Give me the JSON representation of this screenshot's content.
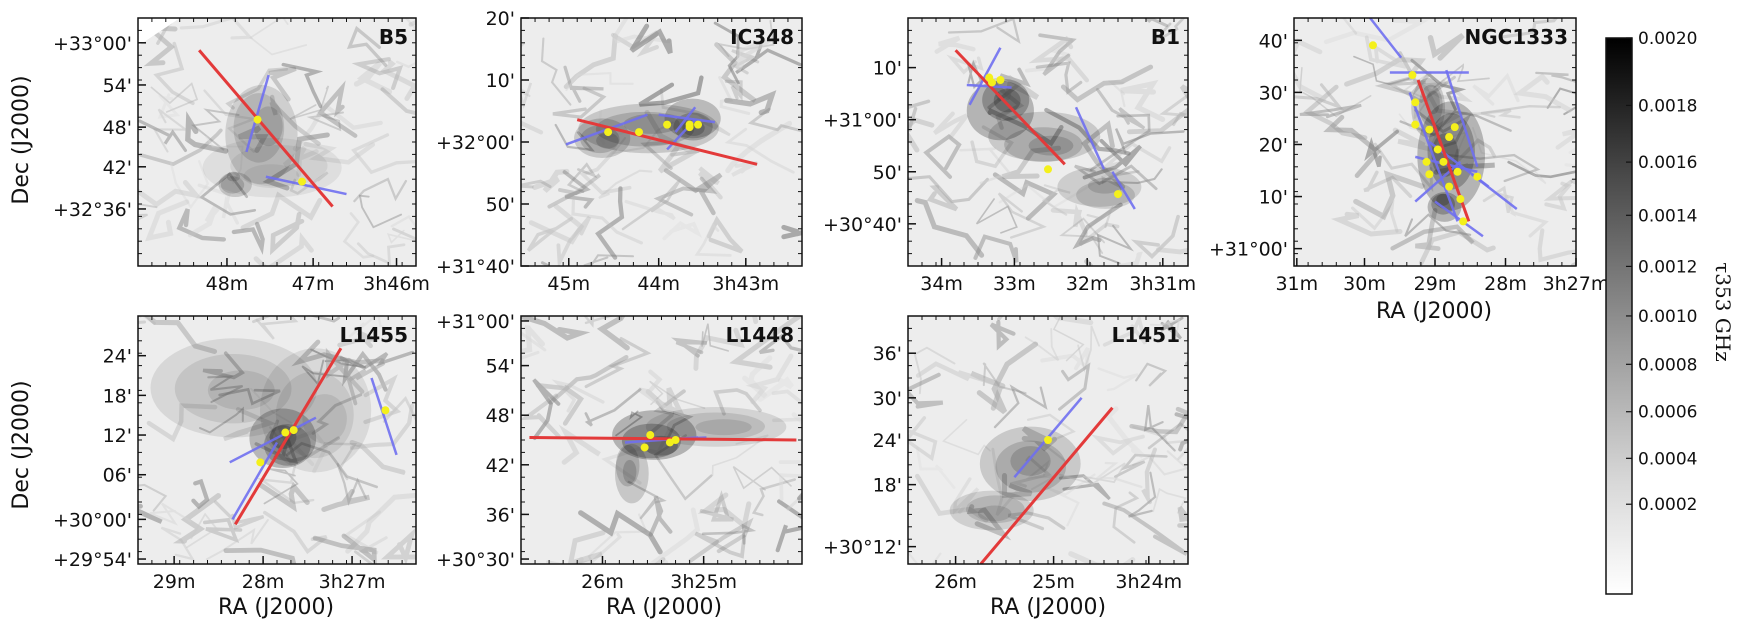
{
  "figure": {
    "y_axis_label": "Dec (J2000)",
    "x_axis_label": "RA (J2000)"
  },
  "colors": {
    "line_red": "#e33a3a",
    "line_blue": "#6f6ff0",
    "point_yellow": "#f4f01b"
  },
  "chart_data": [
    {
      "type": "image_map",
      "name": "B5",
      "x_ticks": [
        "48m",
        "47m",
        "3h46m"
      ],
      "y_ticks": [
        "+33°00'",
        "54'",
        "48'",
        "42'",
        "+32°36'"
      ],
      "show_ylabel": true,
      "show_xlabel": false,
      "texture_seed": 11,
      "clouds": [
        [
          0.45,
          0.45,
          0.13,
          0.2,
          0.45
        ],
        [
          0.5,
          0.62,
          0.25,
          0.12,
          0.25
        ],
        [
          0.35,
          0.65,
          0.06,
          0.05,
          0.6
        ]
      ],
      "red_lines": [
        [
          0.22,
          0.13,
          0.7,
          0.76
        ]
      ],
      "blue_lines": [
        [
          0.47,
          0.23,
          0.39,
          0.54
        ],
        [
          0.46,
          0.64,
          0.75,
          0.71
        ]
      ],
      "points": [
        [
          0.43,
          0.41
        ],
        [
          0.59,
          0.66
        ]
      ]
    },
    {
      "type": "image_map",
      "name": "IC348",
      "x_ticks": [
        "45m",
        "44m",
        "3h43m"
      ],
      "y_ticks": [
        "20'",
        "10'",
        "+32°00'",
        "50'",
        "+31°40'"
      ],
      "show_ylabel": false,
      "show_xlabel": false,
      "texture_seed": 23,
      "clouds": [
        [
          0.45,
          0.45,
          0.25,
          0.1,
          0.6
        ],
        [
          0.6,
          0.42,
          0.1,
          0.08,
          0.8
        ],
        [
          0.3,
          0.5,
          0.1,
          0.08,
          0.6
        ]
      ],
      "red_lines": [
        [
          0.2,
          0.41,
          0.84,
          0.59
        ]
      ],
      "blue_lines": [
        [
          0.16,
          0.51,
          0.45,
          0.39
        ],
        [
          0.49,
          0.39,
          0.69,
          0.42
        ],
        [
          0.55,
          0.46,
          0.62,
          0.36
        ],
        [
          0.52,
          0.53,
          0.62,
          0.41
        ]
      ],
      "points": [
        [
          0.31,
          0.46
        ],
        [
          0.42,
          0.46
        ],
        [
          0.52,
          0.43
        ],
        [
          0.6,
          0.43
        ],
        [
          0.6,
          0.44
        ],
        [
          0.63,
          0.43
        ]
      ]
    },
    {
      "type": "image_map",
      "name": "B1",
      "x_ticks": [
        "34m",
        "33m",
        "32m",
        "3h31m"
      ],
      "y_ticks": [
        "10'",
        "+31°00'",
        "50'",
        "+30°40'"
      ],
      "show_ylabel": false,
      "show_xlabel": false,
      "texture_seed": 37,
      "clouds": [
        [
          0.35,
          0.35,
          0.12,
          0.12,
          0.9
        ],
        [
          0.5,
          0.5,
          0.2,
          0.1,
          0.55
        ],
        [
          0.7,
          0.7,
          0.15,
          0.08,
          0.5
        ]
      ],
      "red_lines": [
        [
          0.17,
          0.13,
          0.56,
          0.59
        ]
      ],
      "blue_lines": [
        [
          0.21,
          0.27,
          0.37,
          0.28
        ],
        [
          0.22,
          0.35,
          0.33,
          0.12
        ],
        [
          0.6,
          0.36,
          0.7,
          0.61
        ],
        [
          0.73,
          0.62,
          0.81,
          0.77
        ]
      ],
      "points": [
        [
          0.29,
          0.24
        ],
        [
          0.3,
          0.26
        ],
        [
          0.33,
          0.25
        ],
        [
          0.5,
          0.61
        ],
        [
          0.75,
          0.71
        ]
      ]
    },
    {
      "type": "image_map",
      "name": "NGC1333",
      "x_ticks": [
        "31m",
        "30m",
        "29m",
        "28m",
        "3h27m"
      ],
      "y_ticks": [
        "40'",
        "30'",
        "20'",
        "10'",
        "+31°00'"
      ],
      "show_ylabel": false,
      "show_xlabel": true,
      "texture_seed": 53,
      "clouds": [
        [
          0.55,
          0.55,
          0.12,
          0.22,
          0.9
        ],
        [
          0.48,
          0.35,
          0.06,
          0.12,
          0.6
        ],
        [
          0.55,
          0.75,
          0.06,
          0.06,
          0.9
        ]
      ],
      "red_lines": [
        [
          0.44,
          0.25,
          0.62,
          0.82
        ]
      ],
      "blue_lines": [
        [
          0.27,
          0.0,
          0.38,
          0.16
        ],
        [
          0.34,
          0.22,
          0.62,
          0.22
        ],
        [
          0.54,
          0.21,
          0.65,
          0.6
        ],
        [
          0.41,
          0.3,
          0.58,
          0.82
        ],
        [
          0.48,
          0.5,
          0.69,
          0.68
        ],
        [
          0.43,
          0.56,
          0.65,
          0.62
        ],
        [
          0.43,
          0.74,
          0.59,
          0.58
        ],
        [
          0.63,
          0.63,
          0.79,
          0.77
        ],
        [
          0.5,
          0.74,
          0.67,
          0.88
        ]
      ],
      "points": [
        [
          0.28,
          0.11
        ],
        [
          0.42,
          0.23
        ],
        [
          0.43,
          0.34
        ],
        [
          0.43,
          0.43
        ],
        [
          0.48,
          0.45
        ],
        [
          0.47,
          0.58
        ],
        [
          0.48,
          0.63
        ],
        [
          0.51,
          0.53
        ],
        [
          0.55,
          0.48
        ],
        [
          0.58,
          0.62
        ],
        [
          0.59,
          0.73
        ],
        [
          0.6,
          0.82
        ],
        [
          0.65,
          0.64
        ],
        [
          0.55,
          0.68
        ],
        [
          0.57,
          0.44
        ],
        [
          0.53,
          0.58
        ]
      ]
    },
    {
      "type": "image_map",
      "name": "L1455",
      "x_ticks": [
        "29m",
        "28m",
        "3h27m"
      ],
      "y_ticks": [
        "24'",
        "18'",
        "12'",
        "06'",
        "+30°00'",
        "+29°54'"
      ],
      "show_ylabel": true,
      "show_xlabel": true,
      "texture_seed": 71,
      "clouds": [
        [
          0.52,
          0.5,
          0.12,
          0.12,
          0.85
        ],
        [
          0.35,
          0.3,
          0.3,
          0.2,
          0.35
        ],
        [
          0.65,
          0.4,
          0.2,
          0.25,
          0.3
        ]
      ],
      "red_lines": [
        [
          0.35,
          0.84,
          0.73,
          0.13
        ]
      ],
      "blue_lines": [
        [
          0.33,
          0.59,
          0.64,
          0.41
        ],
        [
          0.34,
          0.82,
          0.5,
          0.51
        ],
        [
          0.84,
          0.25,
          0.93,
          0.56
        ]
      ],
      "points": [
        [
          0.44,
          0.59
        ],
        [
          0.53,
          0.47
        ],
        [
          0.56,
          0.46
        ],
        [
          0.89,
          0.38
        ]
      ]
    },
    {
      "type": "image_map",
      "name": "L1448",
      "x_ticks": [
        "26m",
        "3h25m"
      ],
      "y_ticks": [
        "+31°00'",
        "54'",
        "48'",
        "42'",
        "36'",
        "+30°30'"
      ],
      "show_ylabel": false,
      "show_xlabel": true,
      "texture_seed": 89,
      "clouds": [
        [
          0.48,
          0.5,
          0.15,
          0.1,
          0.95
        ],
        [
          0.4,
          0.62,
          0.06,
          0.12,
          0.6
        ],
        [
          0.7,
          0.45,
          0.25,
          0.08,
          0.4
        ]
      ],
      "red_lines": [
        [
          0.03,
          0.49,
          0.98,
          0.5
        ]
      ],
      "blue_lines": [
        [
          0.37,
          0.51,
          0.63,
          0.49
        ],
        [
          0.47,
          0.5,
          0.66,
          0.49
        ]
      ],
      "points": [
        [
          0.44,
          0.53
        ],
        [
          0.46,
          0.48
        ],
        [
          0.53,
          0.51
        ],
        [
          0.55,
          0.5
        ]
      ]
    },
    {
      "type": "image_map",
      "name": "L1451",
      "x_ticks": [
        "26m",
        "25m",
        "3h24m"
      ],
      "y_ticks": [
        "36'",
        "30'",
        "24'",
        "18'",
        "+30°12'"
      ],
      "show_ylabel": false,
      "show_xlabel": true,
      "texture_seed": 97,
      "clouds": [
        [
          0.45,
          0.6,
          0.18,
          0.15,
          0.55
        ],
        [
          0.3,
          0.8,
          0.15,
          0.08,
          0.45
        ]
      ],
      "red_lines": [
        [
          0.26,
          1.0,
          0.73,
          0.37
        ]
      ],
      "blue_lines": [
        [
          0.38,
          0.65,
          0.62,
          0.33
        ]
      ],
      "points": [
        [
          0.5,
          0.5
        ]
      ]
    }
  ],
  "colorbar": {
    "title": "τ353 GHz",
    "tick_labels": [
      "0.0020",
      "0.0018",
      "0.0016",
      "0.0014",
      "0.0012",
      "0.0010",
      "0.0008",
      "0.0006",
      "0.0004",
      "0.0002"
    ],
    "tick_values": [
      0.002,
      0.0018,
      0.0016,
      0.0014,
      0.0012,
      0.001,
      0.0008,
      0.0006,
      0.0004,
      0.0002
    ]
  }
}
